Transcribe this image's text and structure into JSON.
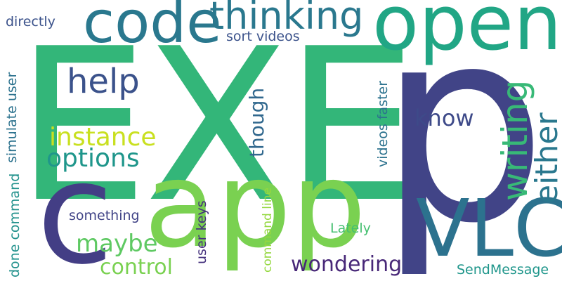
{
  "words": [
    {
      "id": "exe",
      "text": "EXE",
      "color": "#33b679"
    },
    {
      "id": "p",
      "text": "p",
      "color": "#414487"
    },
    {
      "id": "app",
      "text": "app",
      "color": "#7ad151"
    },
    {
      "id": "c",
      "text": "c",
      "color": "#433e85"
    },
    {
      "id": "open",
      "text": "open",
      "color": "#21a685"
    },
    {
      "id": "code",
      "text": "code",
      "color": "#2a788e"
    },
    {
      "id": "vlc",
      "text": "VLC",
      "color": "#2c728e"
    },
    {
      "id": "thinking",
      "text": "thinking",
      "color": "#2a788e"
    },
    {
      "id": "help",
      "text": "help",
      "color": "#3b528b"
    },
    {
      "id": "writing",
      "text": "writing",
      "color": "#38b977"
    },
    {
      "id": "either",
      "text": "either",
      "color": "#2a788e"
    },
    {
      "id": "instance",
      "text": "instance",
      "color": "#c9e020"
    },
    {
      "id": "options",
      "text": "options",
      "color": "#1f968b"
    },
    {
      "id": "maybe",
      "text": "maybe",
      "color": "#5ec962"
    },
    {
      "id": "control",
      "text": "control",
      "color": "#7ad151"
    },
    {
      "id": "wondering",
      "text": "wondering",
      "color": "#482878"
    },
    {
      "id": "know",
      "text": "know",
      "color": "#3e4a89"
    },
    {
      "id": "though",
      "text": "though",
      "color": "#31688e"
    },
    {
      "id": "directly",
      "text": "directly",
      "color": "#3b528b"
    },
    {
      "id": "sort_videos",
      "text": "sort videos",
      "color": "#3b528b"
    },
    {
      "id": "simulate_user",
      "text": "simulate user",
      "color": "#2c728e"
    },
    {
      "id": "done_command",
      "text": "done command",
      "color": "#21918c"
    },
    {
      "id": "something",
      "text": "something",
      "color": "#414487"
    },
    {
      "id": "user_keys",
      "text": "user keys",
      "color": "#46327e"
    },
    {
      "id": "command_line",
      "text": "command line",
      "color": "#95d840"
    },
    {
      "id": "videos_faster",
      "text": "videos faster",
      "color": "#2c728e"
    },
    {
      "id": "lately",
      "text": "Lately",
      "color": "#44bf70"
    },
    {
      "id": "sendmessage",
      "text": "SendMessage",
      "color": "#1f968b"
    }
  ]
}
